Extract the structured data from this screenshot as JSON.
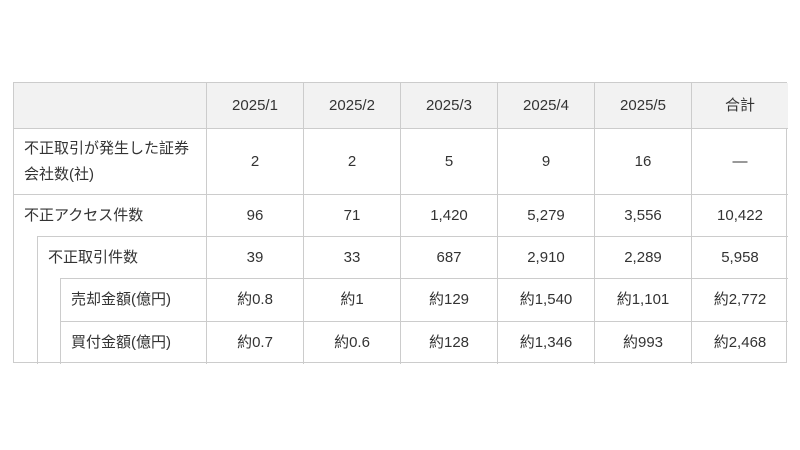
{
  "chart_data": {
    "type": "table",
    "columns": [
      "2025/1",
      "2025/2",
      "2025/3",
      "2025/4",
      "2025/5",
      "合計"
    ],
    "rows": [
      {
        "label": "不正取引が発生した証券会社数(社)",
        "indent": 0,
        "values": [
          "2",
          "2",
          "5",
          "9",
          "16",
          "—"
        ]
      },
      {
        "label": "不正アクセス件数",
        "indent": 0,
        "values": [
          "96",
          "71",
          "1,420",
          "5,279",
          "3,556",
          "10,422"
        ]
      },
      {
        "label": "不正取引件数",
        "indent": 1,
        "values": [
          "39",
          "33",
          "687",
          "2,910",
          "2,289",
          "5,958"
        ]
      },
      {
        "label": "売却金額(億円)",
        "indent": 2,
        "values": [
          "約0.8",
          "約1",
          "約129",
          "約1,540",
          "約1,101",
          "約2,772"
        ]
      },
      {
        "label": "買付金額(億円)",
        "indent": 2,
        "values": [
          "約0.7",
          "約0.6",
          "約128",
          "約1,346",
          "約993",
          "約2,468"
        ]
      }
    ],
    "layout": {
      "grid": "on",
      "header_row": true,
      "nested_row_indentation": true
    },
    "colors": {
      "header_bg": "#f2f2f2",
      "border": "#cccccc",
      "text": "#333333",
      "background": "#ffffff"
    }
  }
}
